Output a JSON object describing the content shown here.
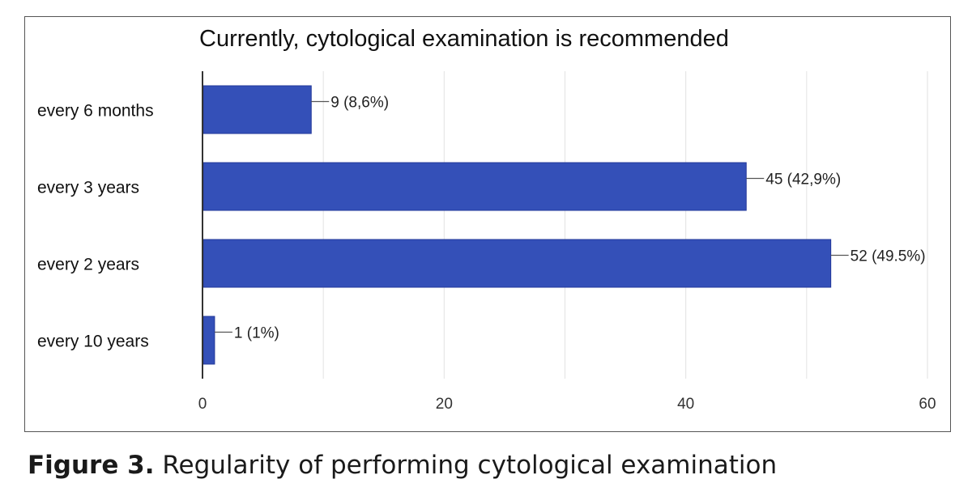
{
  "chart_data": {
    "type": "bar",
    "orientation": "horizontal",
    "title": "Currently, cytological examination is recommended",
    "categories": [
      "every 6 months",
      "every 3 years",
      "every 2 years",
      "every 10 years"
    ],
    "values": [
      9,
      45,
      52,
      1
    ],
    "data_labels": [
      "9 (8,6%)",
      "45 (42,9%)",
      "52 (49.5%)",
      "1 (1%)"
    ],
    "xticks": [
      "0",
      "20",
      "40",
      "60"
    ],
    "xlim": [
      0,
      60
    ],
    "xlabel": "",
    "ylabel": "",
    "grid": true,
    "bar_color": "#3450b8"
  },
  "caption": {
    "lead": "Figure 3.",
    "text": " Regularity of performing cytological examination"
  }
}
